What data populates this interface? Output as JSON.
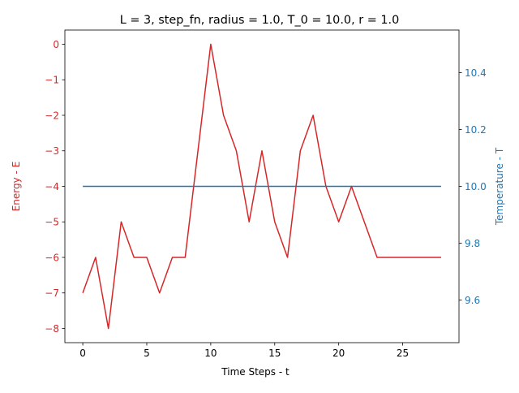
{
  "chart_data": {
    "type": "line",
    "title": "L = 3, step_fn, radius = 1.0, T_0 = 10.0, r = 1.0",
    "xlabel": "Time Steps - t",
    "ylabel_left": "Energy - E",
    "ylabel_right": "Temperature - T",
    "xlim": [
      -1.4,
      29.4
    ],
    "ylim_left": [
      -8.4,
      0.4
    ],
    "ylim_right": [
      9.45,
      10.55
    ],
    "x_ticks": [
      0,
      5,
      10,
      15,
      20,
      25
    ],
    "y_ticks_left": [
      0,
      -1,
      -2,
      -3,
      -4,
      -5,
      -6,
      -7,
      -8
    ],
    "y_ticks_right": [
      9.6,
      9.8,
      10.0,
      10.2,
      10.4
    ],
    "colors": {
      "energy": "#d62728",
      "temperature": "#1f77b4",
      "axes": "#000000"
    },
    "series": [
      {
        "axis": "left",
        "x": [
          0,
          1,
          2,
          3,
          4,
          5,
          6,
          7,
          8,
          9,
          10,
          11,
          12,
          13,
          14,
          15,
          16,
          17,
          18,
          19,
          20,
          21,
          22,
          23,
          24,
          25,
          26,
          27,
          28
        ],
        "values": [
          -7,
          -6,
          -8,
          -5,
          -6,
          -6,
          -7,
          -6,
          -6,
          -3,
          0,
          -2,
          -3,
          -5,
          -3,
          -5,
          -6,
          -3,
          -2,
          -4,
          -5,
          -4,
          -5,
          -6,
          -6,
          -6,
          -6,
          -6,
          -6
        ]
      },
      {
        "axis": "right",
        "x": [
          0,
          1,
          2,
          3,
          4,
          5,
          6,
          7,
          8,
          9,
          10,
          11,
          12,
          13,
          14,
          15,
          16,
          17,
          18,
          19,
          20,
          21,
          22,
          23,
          24,
          25,
          26,
          27,
          28
        ],
        "values": [
          10,
          10,
          10,
          10,
          10,
          10,
          10,
          10,
          10,
          10,
          10,
          10,
          10,
          10,
          10,
          10,
          10,
          10,
          10,
          10,
          10,
          10,
          10,
          10,
          10,
          10,
          10,
          10,
          10
        ]
      }
    ],
    "grid": false,
    "legend": "none"
  }
}
